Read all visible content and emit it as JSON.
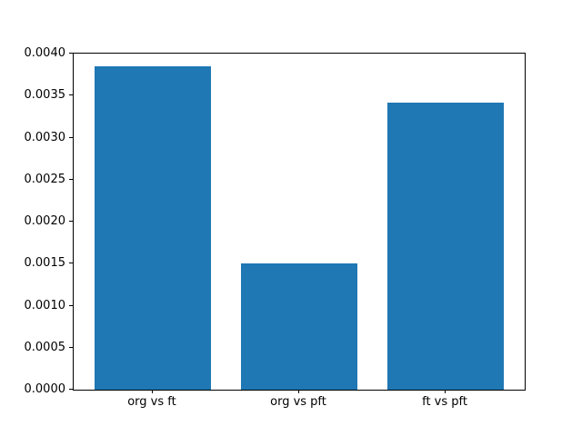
{
  "chart_data": {
    "type": "bar",
    "title": "",
    "xlabel": "",
    "ylabel": "",
    "categories": [
      "org vs ft",
      "org vs pft",
      "ft vs pft"
    ],
    "values": [
      0.00385,
      0.0015,
      0.00342
    ],
    "ylim": [
      0.0,
      0.004
    ],
    "ytick_labels": [
      "0.0000",
      "0.0005",
      "0.0010",
      "0.0015",
      "0.0020",
      "0.0025",
      "0.0030",
      "0.0035",
      "0.0040"
    ],
    "bar_color": "#1f77b4",
    "background_color": "#ffffff",
    "spine_color": "#000000",
    "grid": false,
    "legend": "none",
    "bar_width_fraction": 0.8
  }
}
